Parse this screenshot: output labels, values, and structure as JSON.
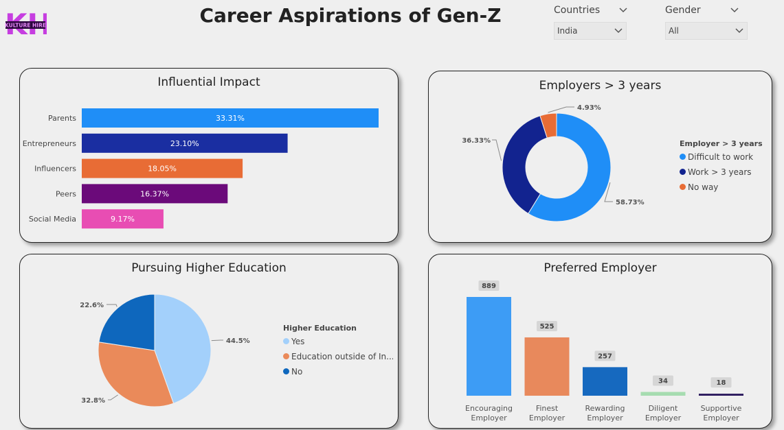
{
  "header": {
    "title": "Career Aspirations of Gen-Z",
    "logo_letters": "KH",
    "logo_subtext": "KULTURE HIRE"
  },
  "filters": {
    "countries": {
      "label": "Countries",
      "value": "India"
    },
    "gender": {
      "label": "Gender",
      "value": "All"
    }
  },
  "icons": {
    "chevron": "chevron-down-icon"
  },
  "chart_data": [
    {
      "id": "influential_impact",
      "type": "bar",
      "orientation": "horizontal",
      "title": "Influential Impact",
      "categories": [
        "Parents",
        "Entrepreneurs",
        "Influencers",
        "Peers",
        "Social Media"
      ],
      "values": [
        33.31,
        23.1,
        18.05,
        16.37,
        9.17
      ],
      "labels": [
        "33.31%",
        "23.10%",
        "18.05%",
        "16.37%",
        "9.17%"
      ],
      "colors": [
        "#1f8ef7",
        "#1a2ea1",
        "#e86c35",
        "#6b0a7a",
        "#e84db3"
      ]
    },
    {
      "id": "employers_3_years",
      "type": "pie",
      "donut": true,
      "title": "Employers > 3 years",
      "legend_title": "Employer > 3 years",
      "legend_position": "right",
      "categories": [
        "Difficult to work",
        "Work > 3 years",
        "No way"
      ],
      "values": [
        58.73,
        36.33,
        4.93
      ],
      "labels": [
        "58.73%",
        "36.33%",
        "4.93%"
      ],
      "colors": [
        "#1f8ef7",
        "#12238f",
        "#e86c35"
      ]
    },
    {
      "id": "higher_education",
      "type": "pie",
      "title": "Pursuing Higher Education",
      "legend_title": "Higher Education",
      "legend_position": "right",
      "categories": [
        "Yes",
        "Education outside of In...",
        "No"
      ],
      "values": [
        44.5,
        32.8,
        22.6
      ],
      "labels": [
        "44.5%",
        "32.8%",
        "22.6%"
      ],
      "colors": [
        "#a3d0fb",
        "#ea8a5a",
        "#0e67bd"
      ]
    },
    {
      "id": "preferred_employer",
      "type": "bar",
      "orientation": "vertical",
      "title": "Preferred Employer",
      "categories": [
        [
          "Encouraging",
          "Employer"
        ],
        [
          "Finest",
          "Employer"
        ],
        [
          "Rewarding",
          "Employer"
        ],
        [
          "Diligent",
          "Employer"
        ],
        [
          "Supportive",
          "Employer"
        ]
      ],
      "values": [
        889,
        525,
        257,
        34,
        18
      ],
      "labels": [
        "889",
        "525",
        "257",
        "34",
        "18"
      ],
      "colors": [
        "#3d9cf5",
        "#e8895c",
        "#1669bf",
        "#a6dcb0",
        "#2c1a5e"
      ]
    }
  ]
}
